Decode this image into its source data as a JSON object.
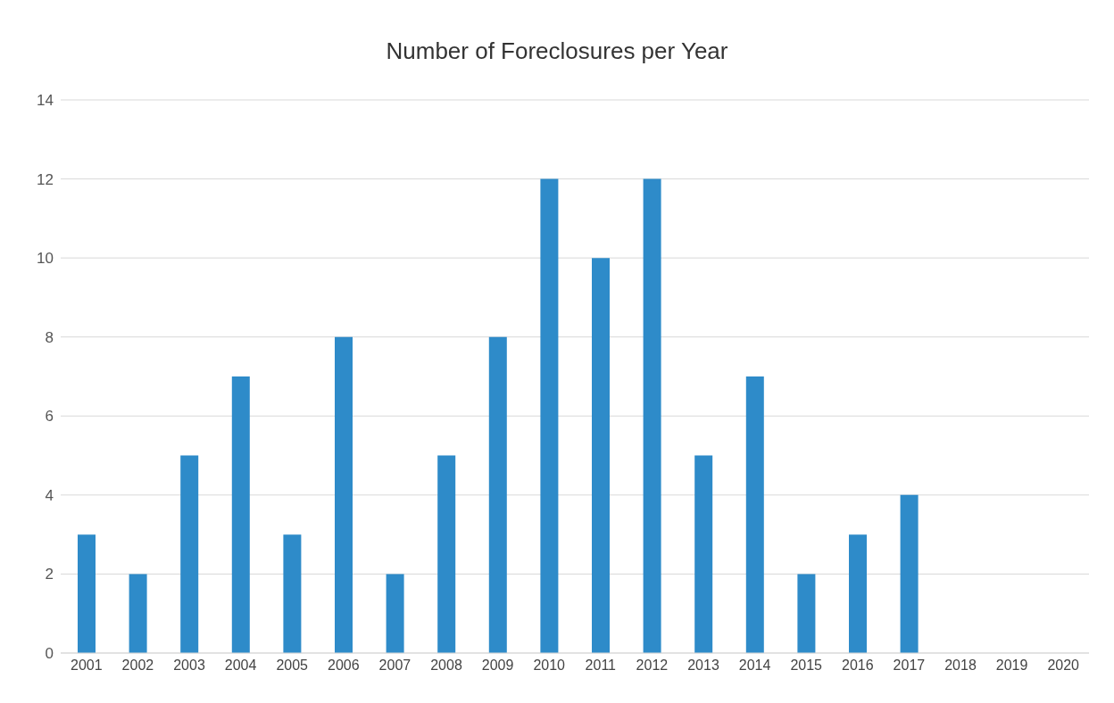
{
  "chart_data": {
    "type": "bar",
    "title": "Number of Foreclosures per Year",
    "categories": [
      "2001",
      "2002",
      "2003",
      "2004",
      "2005",
      "2006",
      "2007",
      "2008",
      "2009",
      "2010",
      "2011",
      "2012",
      "2013",
      "2014",
      "2015",
      "2016",
      "2017",
      "2018",
      "2019",
      "2020"
    ],
    "values": [
      3,
      2,
      5,
      7,
      3,
      8,
      2,
      5,
      8,
      12,
      10,
      12,
      5,
      7,
      2,
      3,
      4,
      0,
      0,
      0
    ],
    "color": "#2e8bc9",
    "ylim": [
      0,
      14
    ],
    "yticks": [
      0,
      2,
      4,
      6,
      8,
      10,
      12,
      14
    ],
    "grid": "y"
  }
}
